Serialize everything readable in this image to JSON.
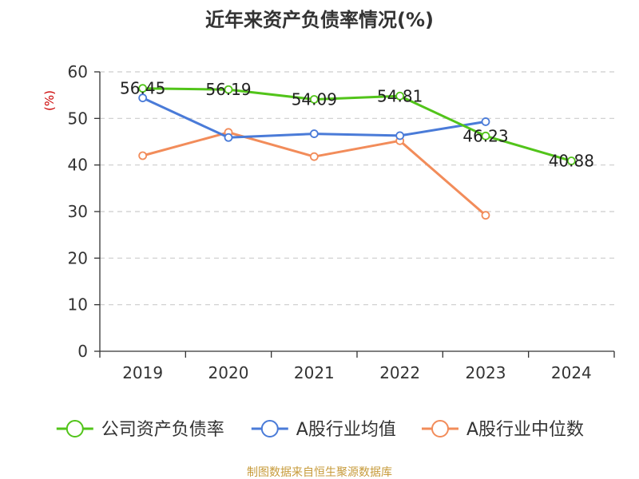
{
  "colors": {
    "background": "#ffffff",
    "axis": "#333333",
    "grid": "#cccccc",
    "title": "#333333",
    "ylabel": "#cc0000",
    "source": "#c79b3b"
  },
  "chart_data": {
    "type": "line",
    "title": "近年来资产负债率情况(%)",
    "ylabel": "(%)",
    "categories": [
      "2019",
      "2020",
      "2021",
      "2022",
      "2023",
      "2024"
    ],
    "ylim": [
      0,
      60
    ],
    "yticks": [
      0,
      10,
      20,
      30,
      40,
      50,
      60
    ],
    "grid": true,
    "legend_position": "bottom",
    "series": [
      {
        "name": "公司资产负债率",
        "color": "#52c41a",
        "values": [
          56.45,
          56.19,
          54.09,
          54.81,
          46.23,
          40.88
        ],
        "labels": [
          "56.45",
          "56.19",
          "54.09",
          "54.81",
          "46.23",
          "40.88"
        ]
      },
      {
        "name": "A股行业均值",
        "color": "#4a7bd8",
        "values": [
          54.4,
          45.9,
          46.7,
          46.3,
          49.3,
          null
        ]
      },
      {
        "name": "A股行业中位数",
        "color": "#f28c5a",
        "values": [
          42.0,
          47.0,
          41.8,
          45.2,
          29.2,
          null
        ]
      }
    ],
    "source": "制图数据来自恒生聚源数据库"
  }
}
